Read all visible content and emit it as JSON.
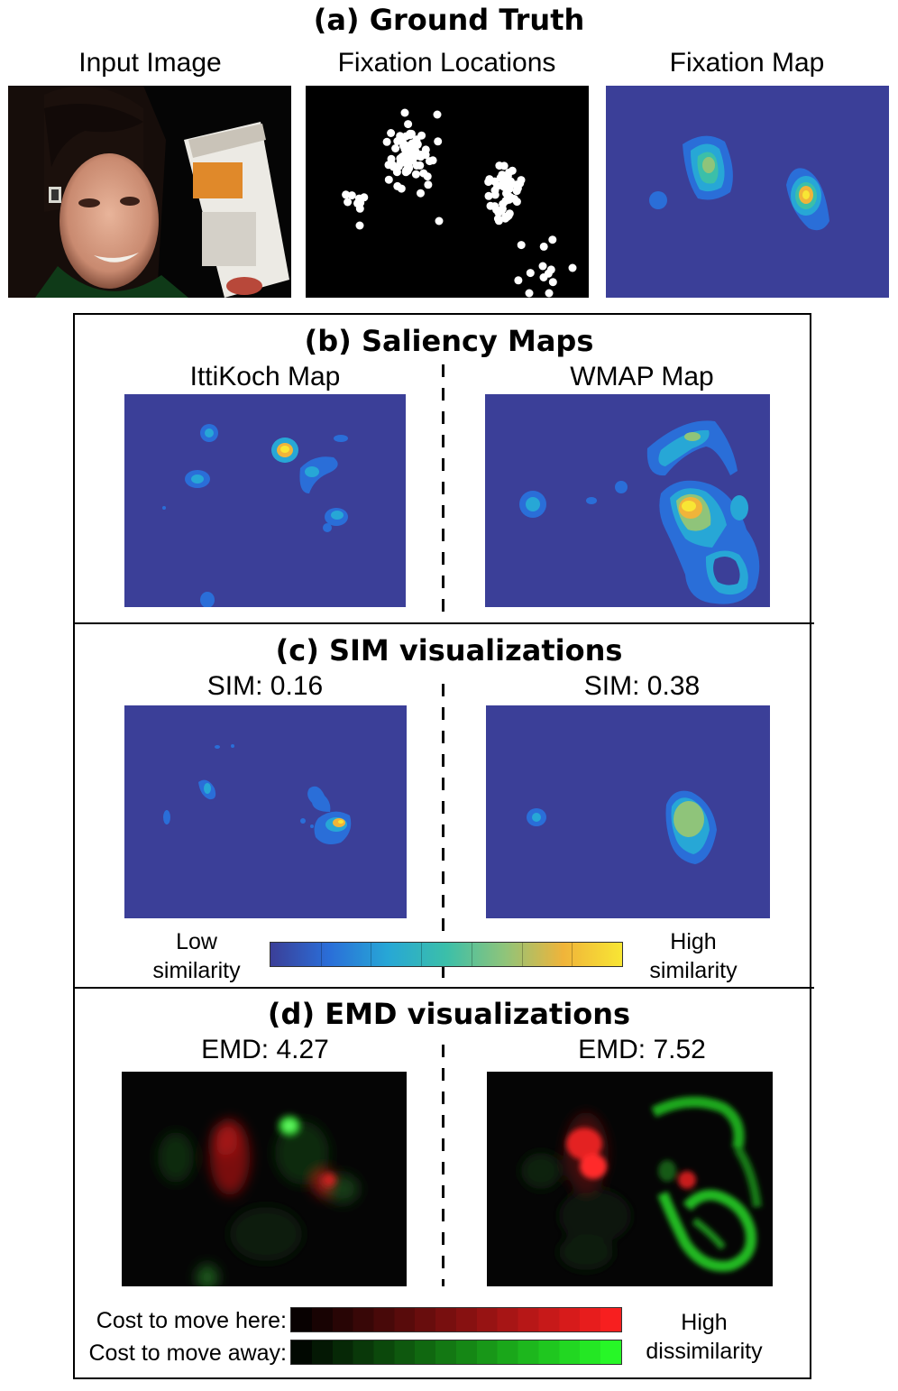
{
  "a": {
    "title": "(a) Ground Truth",
    "input_label": "Input Image",
    "fixloc_label": "Fixation Locations",
    "fixmap_label": "Fixation Map"
  },
  "b": {
    "title": "(b) Saliency Maps",
    "left_label": "IttiKoch Map",
    "right_label": "WMAP Map"
  },
  "c": {
    "title": "(c) SIM visualizations",
    "left_label": "SIM: 0.16",
    "right_label": "SIM: 0.38",
    "cb_low": [
      "Low",
      "similarity"
    ],
    "cb_high": [
      "High",
      "similarity"
    ],
    "colors": [
      "#3b3f98",
      "#2a6ed8",
      "#27a7d6",
      "#3bbfa9",
      "#8fc47a",
      "#f0b43a",
      "#f8e634"
    ]
  },
  "d": {
    "title": "(d) EMD visualizations",
    "left_label": "EMD: 4.27",
    "right_label": "EMD: 7.52",
    "cost_here": "Cost to move here:",
    "cost_away": "Cost to move away:",
    "high": [
      "High",
      "dissimilarity"
    ],
    "red": "#ff2020",
    "green": "#28ff28"
  }
}
